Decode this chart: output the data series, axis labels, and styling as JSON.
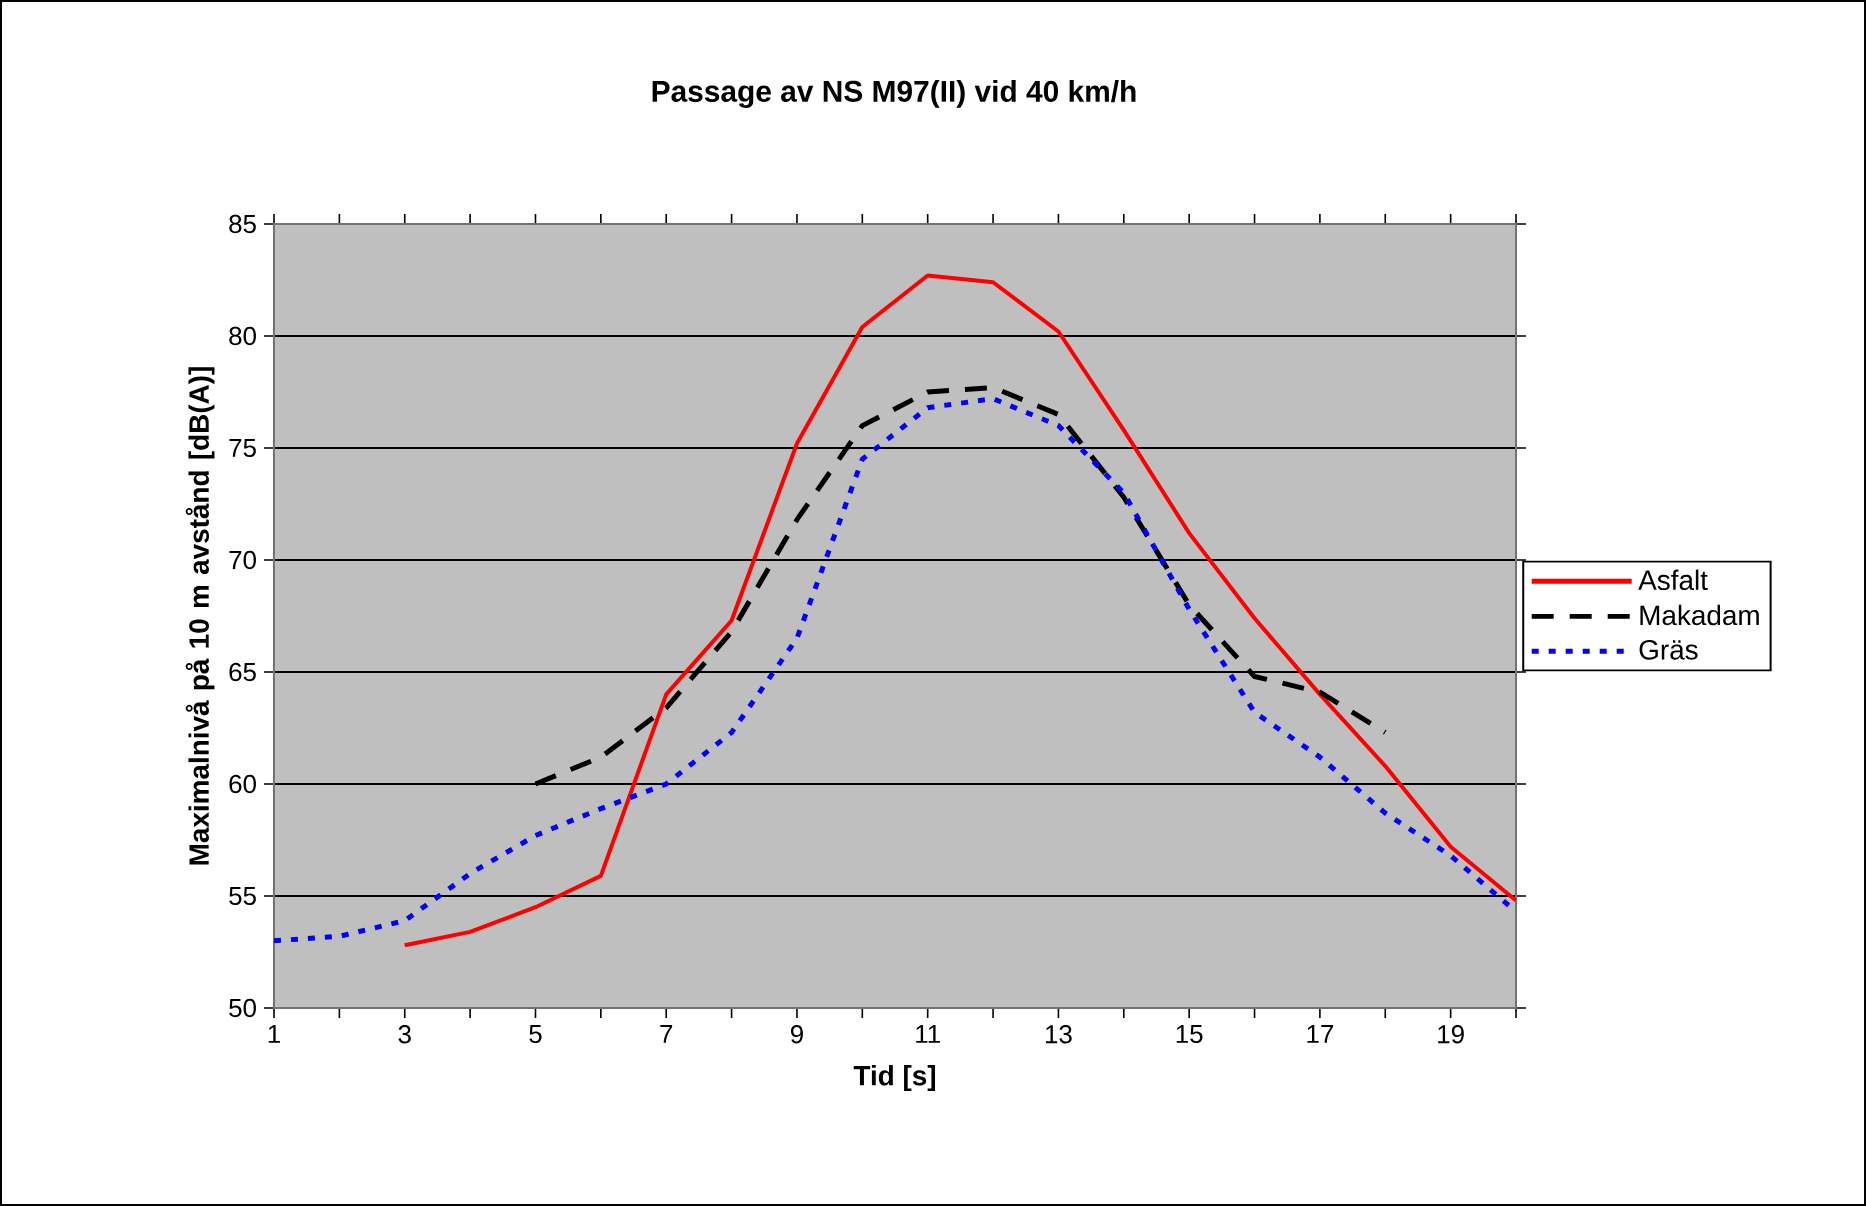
{
  "chart_data": {
    "type": "line",
    "title": "Passage av NS M97(II) vid 40 km/h",
    "xlabel": "Tid [s]",
    "ylabel": "Maximalnivå på 10 m avstånd [dB(A)]",
    "x": [
      1,
      2,
      3,
      4,
      5,
      6,
      7,
      8,
      9,
      10,
      11,
      12,
      13,
      14,
      15,
      16,
      17,
      18,
      19,
      20
    ],
    "xlim": [
      1,
      20
    ],
    "ylim": [
      50,
      85
    ],
    "xticks": [
      1,
      {
        "value": 2,
        "label": null
      },
      3,
      {
        "value": 4,
        "label": null
      },
      5,
      {
        "value": 6,
        "label": null
      },
      7,
      {
        "value": 8,
        "label": null
      },
      9,
      {
        "value": 10,
        "label": null
      },
      11,
      {
        "value": 12,
        "label": null
      },
      13,
      {
        "value": 14,
        "label": null
      },
      15,
      {
        "value": 16,
        "label": null
      },
      17,
      {
        "value": 18,
        "label": null
      },
      19,
      {
        "value": 20,
        "label": null
      }
    ],
    "yticks": [
      50,
      55,
      60,
      65,
      70,
      75,
      80,
      85
    ],
    "grid": "y",
    "legend": "right",
    "marker": "none",
    "series": [
      {
        "name": "Asfalt",
        "color": "#ff0000",
        "line_style": "solid",
        "values": [
          null,
          null,
          52.8,
          53.4,
          54.5,
          55.9,
          64.0,
          67.3,
          75.2,
          80.4,
          82.7,
          82.4,
          80.2,
          75.8,
          71.2,
          67.4,
          64.0,
          60.8,
          57.2,
          54.8
        ]
      },
      {
        "name": "Makadam",
        "color": "#000000",
        "line_style": "dashed",
        "values": [
          null,
          null,
          null,
          null,
          60.0,
          61.2,
          63.4,
          66.8,
          71.8,
          76.0,
          77.5,
          77.7,
          76.5,
          72.8,
          68.0,
          64.8,
          64.1,
          62.3,
          null,
          null
        ]
      },
      {
        "name": "Gräs",
        "color": "#0000ff",
        "line_style": "dotted",
        "values": [
          53.0,
          53.2,
          53.9,
          56.0,
          57.7,
          58.9,
          60.0,
          62.3,
          66.5,
          74.5,
          76.8,
          77.2,
          76.0,
          73.0,
          67.8,
          63.2,
          61.2,
          58.7,
          56.8,
          54.3
        ]
      }
    ]
  }
}
